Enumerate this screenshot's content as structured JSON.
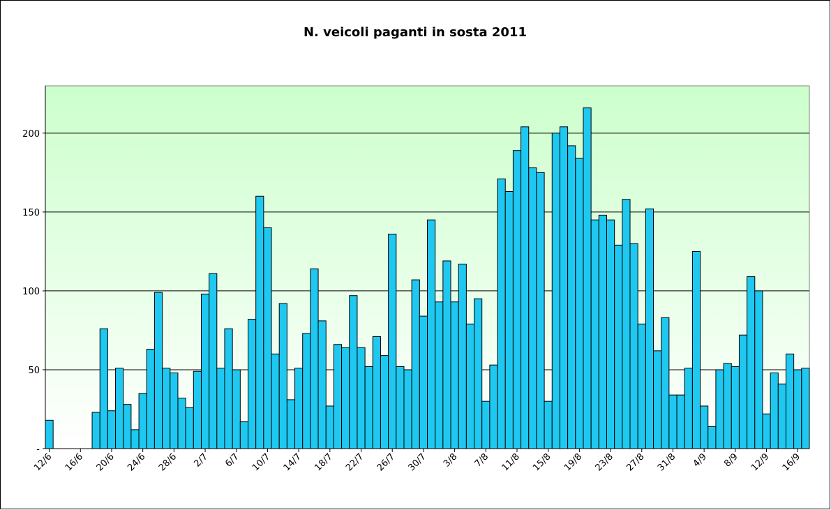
{
  "chart_data": {
    "type": "bar",
    "title": "N. veicoli paganti in sosta 2011",
    "categories": [
      "12/6",
      null,
      null,
      null,
      "16/6",
      null,
      null,
      null,
      "20/6",
      null,
      null,
      null,
      "24/6",
      null,
      null,
      null,
      "28/6",
      null,
      null,
      null,
      "2/7",
      null,
      null,
      null,
      "6/7",
      null,
      null,
      null,
      "10/7",
      null,
      null,
      null,
      "14/7",
      null,
      null,
      null,
      "18/7",
      null,
      null,
      null,
      "22/7",
      null,
      null,
      null,
      "26/7",
      null,
      null,
      null,
      "30/7",
      null,
      null,
      null,
      "3/8",
      null,
      null,
      null,
      "7/8",
      null,
      null,
      null,
      "11/8",
      null,
      null,
      null,
      "15/8",
      null,
      null,
      null,
      "19/8",
      null,
      null,
      null,
      "23/8",
      null,
      null,
      null,
      "27/8",
      null,
      null,
      null,
      "31/8",
      null,
      null,
      null,
      "4/9",
      null,
      null,
      null,
      "8/9",
      null,
      null,
      null,
      "12/9",
      null,
      null,
      null,
      "16/9",
      null
    ],
    "values": [
      18,
      0,
      0,
      0,
      0,
      0,
      23,
      76,
      24,
      51,
      28,
      12,
      35,
      63,
      99,
      51,
      48,
      32,
      26,
      49,
      98,
      111,
      51,
      76,
      50,
      17,
      82,
      160,
      140,
      60,
      92,
      31,
      51,
      73,
      114,
      81,
      27,
      66,
      64,
      97,
      64,
      52,
      71,
      59,
      136,
      52,
      50,
      107,
      84,
      145,
      93,
      119,
      93,
      117,
      79,
      95,
      30,
      53,
      171,
      163,
      189,
      204,
      178,
      175,
      30,
      200,
      204,
      192,
      184,
      216,
      145,
      148,
      145,
      129,
      158,
      130,
      79,
      152,
      62,
      83,
      34,
      34,
      51,
      125,
      27,
      14,
      50,
      54,
      52,
      72,
      109,
      100,
      22,
      48,
      41,
      60,
      50,
      51
    ],
    "color": "#1ec8f0",
    "ylim": [
      0,
      230
    ],
    "yticks": [
      {
        "value": 0,
        "label": "-"
      },
      50,
      100,
      150,
      200
    ],
    "grid": true
  }
}
